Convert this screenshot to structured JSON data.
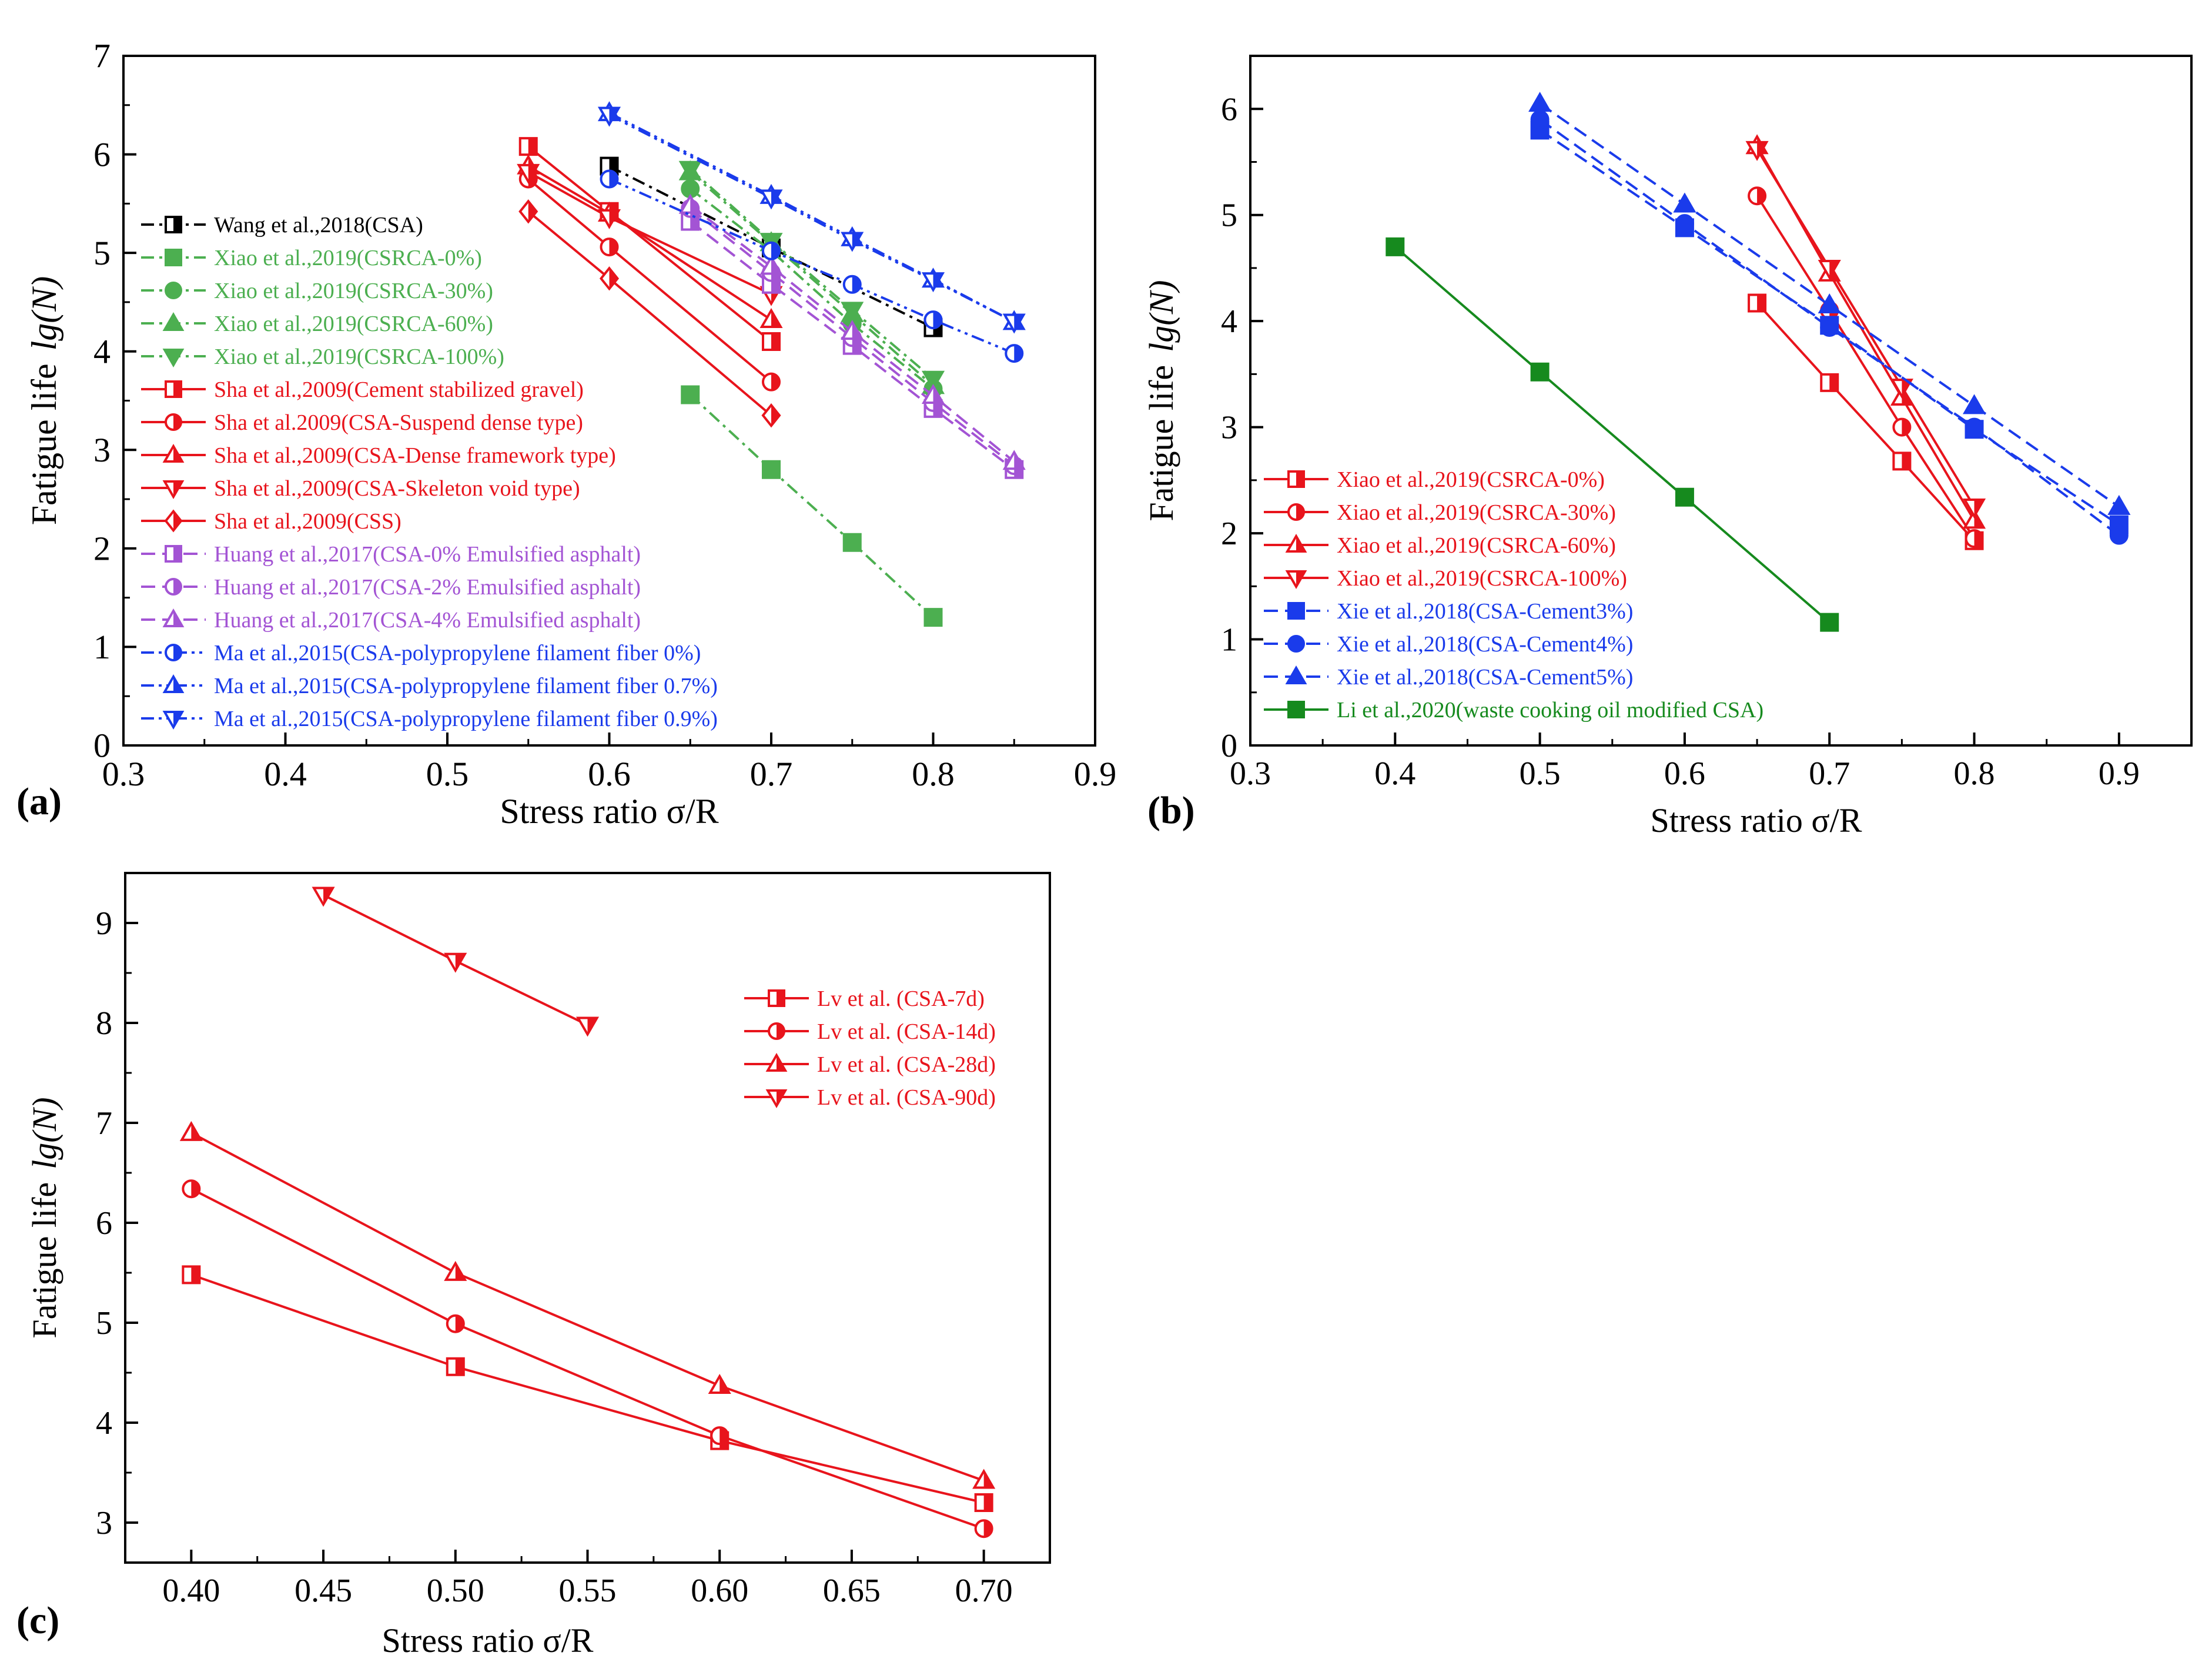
{
  "chart_data": [
    {
      "type": "line",
      "panel_label": "(a)",
      "xlabel": "Stress ratio σ/R",
      "ylabel_prefix": "Fatigue life",
      "ylabel_math": "lg(N)",
      "xlim": [
        0.3,
        0.9
      ],
      "ylim": [
        0,
        7
      ],
      "xticks": [
        0.3,
        0.4,
        0.5,
        0.6,
        0.7,
        0.8,
        0.9
      ],
      "xtick_labels": [
        "0.3",
        "0.4",
        "0.5",
        "0.6",
        "0.7",
        "0.8",
        "0.9"
      ],
      "yticks": [
        0,
        1,
        2,
        3,
        4,
        5,
        6,
        7
      ],
      "ytick_labels": [
        "0",
        "1",
        "2",
        "3",
        "4",
        "5",
        "6",
        "7"
      ],
      "legend_position": "left",
      "series": [
        {
          "name": "Wang et al.,2018(CSA)",
          "color": "#000000",
          "dash": "dashdot",
          "marker": "square",
          "fill": "half",
          "x": [
            0.6,
            0.7,
            0.8
          ],
          "y": [
            5.88,
            5.05,
            4.24
          ]
        },
        {
          "name": "Xiao et al.,2019(CSRCA-0%)",
          "color": "#4CAF50",
          "dash": "dashdot",
          "marker": "square",
          "fill": "full",
          "x": [
            0.65,
            0.7,
            0.75,
            0.8
          ],
          "y": [
            3.56,
            2.8,
            2.06,
            1.3
          ]
        },
        {
          "name": "Xiao et al.,2019(CSRCA-30%)",
          "color": "#4CAF50",
          "dash": "dashdot",
          "marker": "circle",
          "fill": "full",
          "x": [
            0.65,
            0.7,
            0.75,
            0.8
          ],
          "y": [
            5.65,
            5.02,
            4.28,
            3.62
          ]
        },
        {
          "name": "Xiao et al.,2019(CSRCA-60%)",
          "color": "#4CAF50",
          "dash": "dashdot",
          "marker": "triangle",
          "fill": "full",
          "x": [
            0.65,
            0.7,
            0.75,
            0.8
          ],
          "y": [
            5.82,
            5.1,
            4.38,
            3.65
          ]
        },
        {
          "name": "Xiao et al.,2019(CSRCA-100%)",
          "color": "#4CAF50",
          "dash": "dashdot",
          "marker": "triangle-down",
          "fill": "full",
          "x": [
            0.65,
            0.7,
            0.75,
            0.8
          ],
          "y": [
            5.85,
            5.12,
            4.42,
            3.72
          ]
        },
        {
          "name": "Sha et al.,2009(Cement stabilized gravel)",
          "color": "#E8141C",
          "dash": "solid",
          "marker": "square",
          "fill": "half",
          "x": [
            0.55,
            0.6,
            0.7
          ],
          "y": [
            6.08,
            5.42,
            4.1
          ]
        },
        {
          "name": "Sha et al.2009(CSA-Suspend dense type)",
          "color": "#E8141C",
          "dash": "solid",
          "marker": "circle",
          "fill": "half",
          "x": [
            0.55,
            0.6,
            0.7
          ],
          "y": [
            5.75,
            5.06,
            3.69
          ]
        },
        {
          "name": "Sha et al.,2009(CSA-Dense framework type)",
          "color": "#E8141C",
          "dash": "solid",
          "marker": "triangle",
          "fill": "half",
          "x": [
            0.55,
            0.6,
            0.7
          ],
          "y": [
            5.88,
            5.4,
            4.32
          ]
        },
        {
          "name": "Sha et al.,2009(CSA-Skeleton void type)",
          "color": "#E8141C",
          "dash": "solid",
          "marker": "triangle-down",
          "fill": "half",
          "x": [
            0.55,
            0.6,
            0.7
          ],
          "y": [
            5.82,
            5.36,
            4.58
          ]
        },
        {
          "name": "Sha et al.,2009(CSS)",
          "color": "#E8141C",
          "dash": "solid",
          "marker": "diamond",
          "fill": "half",
          "x": [
            0.55,
            0.6,
            0.7
          ],
          "y": [
            5.42,
            4.74,
            3.35
          ]
        },
        {
          "name": "Huang et al.,2017(CSA-0% Emulsified asphalt)",
          "color": "#A354D4",
          "dash": "dash",
          "marker": "square",
          "fill": "half",
          "x": [
            0.65,
            0.7,
            0.75,
            0.8,
            0.85
          ],
          "y": [
            5.32,
            4.68,
            4.06,
            3.42,
            2.8
          ]
        },
        {
          "name": "Huang et al.,2017(CSA-2% Emulsified asphalt)",
          "color": "#A354D4",
          "dash": "dash",
          "marker": "circle",
          "fill": "half",
          "x": [
            0.65,
            0.7,
            0.75,
            0.8,
            0.85
          ],
          "y": [
            5.45,
            4.8,
            4.14,
            3.48,
            2.84
          ]
        },
        {
          "name": "Huang et al.,2017(CSA-4% Emulsified asphalt)",
          "color": "#A354D4",
          "dash": "dash",
          "marker": "triangle",
          "fill": "half",
          "x": [
            0.65,
            0.7,
            0.75,
            0.8,
            0.85
          ],
          "y": [
            5.48,
            4.86,
            4.2,
            3.55,
            2.88
          ]
        },
        {
          "name": "Ma et al.,2015(CSA-polypropylene filament fiber 0%)",
          "color": "#1A3BEB",
          "dash": "dashdotdot",
          "marker": "circle",
          "fill": "half",
          "x": [
            0.6,
            0.7,
            0.75,
            0.8,
            0.85
          ],
          "y": [
            5.75,
            5.02,
            4.68,
            4.32,
            3.98
          ]
        },
        {
          "name": "Ma et al.,2015(CSA-polypropylene filament fiber 0.7%)",
          "color": "#1A3BEB",
          "dash": "dashdotdot",
          "marker": "triangle",
          "fill": "half",
          "x": [
            0.6,
            0.7,
            0.75,
            0.8,
            0.85
          ],
          "y": [
            6.42,
            5.58,
            5.15,
            4.73,
            4.3
          ]
        },
        {
          "name": "Ma et al.,2015(CSA-polypropylene filament fiber 0.9%)",
          "color": "#1A3BEB",
          "dash": "dashdotdot",
          "marker": "triangle-down",
          "fill": "half",
          "x": [
            0.6,
            0.7,
            0.75,
            0.8,
            0.85
          ],
          "y": [
            6.4,
            5.56,
            5.13,
            4.72,
            4.3
          ]
        }
      ]
    },
    {
      "type": "line",
      "panel_label": "(b)",
      "xlabel": "Stress ratio σ/R",
      "ylabel_prefix": "Fatigue life",
      "ylabel_math": "lg(N)",
      "xlim": [
        0.3,
        0.95
      ],
      "ylim": [
        0,
        6.5
      ],
      "xticks": [
        0.3,
        0.4,
        0.5,
        0.6,
        0.7,
        0.8,
        0.9
      ],
      "xtick_labels": [
        "0.3",
        "0.4",
        "0.5",
        "0.6",
        "0.7",
        "0.8",
        "0.9"
      ],
      "yticks": [
        0,
        1,
        2,
        3,
        4,
        5,
        6
      ],
      "ytick_labels": [
        "0",
        "1",
        "2",
        "3",
        "4",
        "5",
        "6"
      ],
      "legend_position": "bottom-left",
      "series": [
        {
          "name": "Xiao et al.,2019(CSRCA-0%)",
          "color": "#E8141C",
          "dash": "solid",
          "marker": "square",
          "fill": "half",
          "x": [
            0.65,
            0.7,
            0.75,
            0.8
          ],
          "y": [
            4.17,
            3.42,
            2.68,
            1.93
          ]
        },
        {
          "name": "Xiao et al.,2019(CSRCA-30%)",
          "color": "#E8141C",
          "dash": "solid",
          "marker": "circle",
          "fill": "half",
          "x": [
            0.65,
            0.7,
            0.75,
            0.8
          ],
          "y": [
            5.18,
            4.1,
            3.0,
            1.95
          ]
        },
        {
          "name": "Xiao et al.,2019(CSRCA-60%)",
          "color": "#E8141C",
          "dash": "solid",
          "marker": "triangle",
          "fill": "half",
          "x": [
            0.65,
            0.7,
            0.75,
            0.8
          ],
          "y": [
            5.65,
            4.45,
            3.28,
            2.12
          ]
        },
        {
          "name": "Xiao et al.,2019(CSRCA-100%)",
          "color": "#E8141C",
          "dash": "solid",
          "marker": "triangle-down",
          "fill": "half",
          "x": [
            0.65,
            0.7,
            0.75,
            0.8
          ],
          "y": [
            5.62,
            4.5,
            3.38,
            2.25
          ]
        },
        {
          "name": "Xie et al.,2018(CSA-Cement3%)",
          "color": "#1A3BEB",
          "dash": "dash",
          "marker": "square",
          "fill": "full",
          "x": [
            0.5,
            0.6,
            0.7,
            0.8,
            0.9
          ],
          "y": [
            5.8,
            4.88,
            3.96,
            2.98,
            2.08
          ]
        },
        {
          "name": "Xie et al.,2018(CSA-Cement4%)",
          "color": "#1A3BEB",
          "dash": "dash",
          "marker": "circle",
          "fill": "full",
          "x": [
            0.5,
            0.6,
            0.7,
            0.8,
            0.9
          ],
          "y": [
            5.9,
            4.92,
            3.94,
            3.0,
            1.98
          ]
        },
        {
          "name": "Xie et al.,2018(CSA-Cement5%)",
          "color": "#1A3BEB",
          "dash": "dash",
          "marker": "triangle",
          "fill": "full",
          "x": [
            0.5,
            0.6,
            0.7,
            0.8,
            0.9
          ],
          "y": [
            6.05,
            5.1,
            4.15,
            3.2,
            2.25
          ]
        },
        {
          "name": "Li et al.,2020(waste cooking oil modified CSA)",
          "color": "#168A1E",
          "dash": "solid",
          "marker": "square",
          "fill": "full",
          "x": [
            0.4,
            0.5,
            0.6,
            0.7
          ],
          "y": [
            4.7,
            3.52,
            2.34,
            1.16
          ]
        }
      ]
    },
    {
      "type": "line",
      "panel_label": "(c)",
      "xlabel": "Stress ratio σ/R",
      "ylabel_prefix": "Fatigue life",
      "ylabel_math": "lg(N)",
      "xlim": [
        0.375,
        0.725
      ],
      "ylim": [
        2.6,
        9.5
      ],
      "xticks": [
        0.4,
        0.45,
        0.5,
        0.55,
        0.6,
        0.65,
        0.7
      ],
      "xtick_labels": [
        "0.40",
        "0.45",
        "0.50",
        "0.55",
        "0.60",
        "0.65",
        "0.70"
      ],
      "yticks": [
        3,
        4,
        5,
        6,
        7,
        8,
        9
      ],
      "ytick_labels": [
        "3",
        "4",
        "5",
        "6",
        "7",
        "8",
        "9"
      ],
      "legend_position": "top-right",
      "series": [
        {
          "name": "Lv et al. (CSA-7d)",
          "color": "#E8141C",
          "dash": "solid",
          "marker": "square",
          "fill": "half",
          "x": [
            0.4,
            0.5,
            0.6,
            0.7
          ],
          "y": [
            5.48,
            4.56,
            3.82,
            3.2
          ]
        },
        {
          "name": "Lv et al. (CSA-14d)",
          "color": "#E8141C",
          "dash": "solid",
          "marker": "circle",
          "fill": "half",
          "x": [
            0.4,
            0.5,
            0.6,
            0.7
          ],
          "y": [
            6.34,
            4.99,
            3.87,
            2.94
          ]
        },
        {
          "name": "Lv et al. (CSA-28d)",
          "color": "#E8141C",
          "dash": "solid",
          "marker": "triangle",
          "fill": "half",
          "x": [
            0.4,
            0.5,
            0.6,
            0.7
          ],
          "y": [
            6.9,
            5.5,
            4.37,
            3.42
          ]
        },
        {
          "name": "Lv et al. (CSA-90d)",
          "color": "#E8141C",
          "dash": "solid",
          "marker": "triangle-down",
          "fill": "half",
          "x": [
            0.45,
            0.5,
            0.55
          ],
          "y": [
            9.28,
            8.62,
            7.98
          ]
        }
      ]
    }
  ]
}
